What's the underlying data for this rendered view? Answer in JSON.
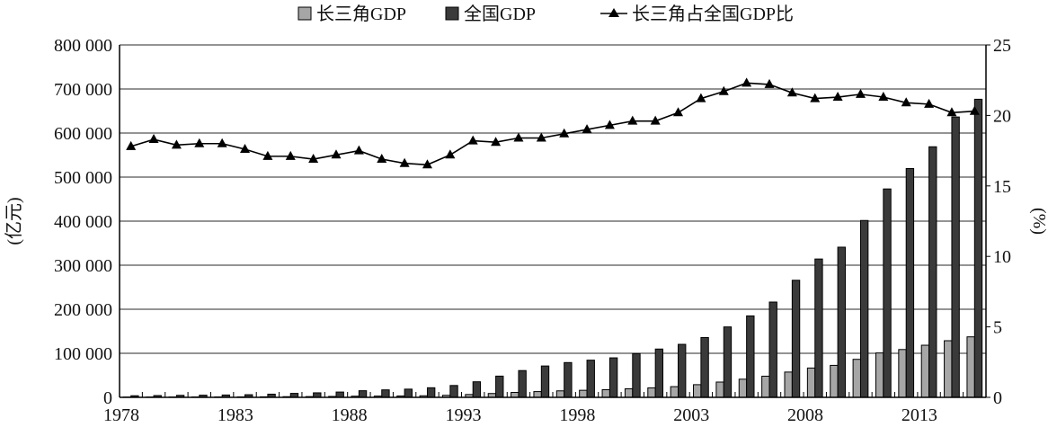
{
  "chart_data": {
    "type": "bar+line",
    "x": [
      1978,
      1979,
      1980,
      1981,
      1982,
      1983,
      1984,
      1985,
      1986,
      1987,
      1988,
      1989,
      1990,
      1991,
      1992,
      1993,
      1994,
      1995,
      1996,
      1997,
      1998,
      1999,
      2000,
      2001,
      2002,
      2003,
      2004,
      2005,
      2006,
      2007,
      2008,
      2009,
      2010,
      2011,
      2012,
      2013,
      2014,
      2015
    ],
    "xticks": [
      "1978",
      "1983",
      "1988",
      "1993",
      "1998",
      "2003",
      "2008",
      "2013"
    ],
    "yticks_left": [
      "0",
      "100 000",
      "200 000",
      "300 000",
      "400 000",
      "500 000",
      "600 000",
      "700 000",
      "800 000"
    ],
    "yticks_right": [
      "0",
      "5",
      "10",
      "15",
      "20",
      "25"
    ],
    "ylabel_left": "(亿元)",
    "ylabel_right": "(%)",
    "ylim_left": [
      0,
      800000
    ],
    "ylim_right": [
      0,
      25
    ],
    "grid": true,
    "legend_placement": "top",
    "series": [
      {
        "name": "长三角GDP",
        "type": "bar",
        "axis": "left",
        "color": "#a6a6a6",
        "values": [
          649,
          744,
          814,
          881,
          958,
          1049,
          1233,
          1542,
          1736,
          2074,
          2633,
          2872,
          3099,
          3594,
          4631,
          6431,
          8724,
          11186,
          13097,
          14768,
          16036,
          17308,
          19446,
          21492,
          24307,
          28794,
          34694,
          41241,
          48022,
          57415,
          66578,
          72612,
          86325,
          100771,
          108569,
          118320,
          128566,
          137372
        ]
      },
      {
        "name": "全国GDP",
        "type": "bar",
        "axis": "left",
        "color": "#3a3a3a",
        "values": [
          3645,
          4063,
          4546,
          4892,
          5323,
          5963,
          7208,
          9016,
          10275,
          12059,
          15043,
          16992,
          18668,
          21781,
          26923,
          35334,
          48198,
          60794,
          71177,
          78973,
          84402,
          89677,
          99215,
          109655,
          120333,
          135823,
          159878,
          184937,
          216314,
          265810,
          314045,
          340903,
          401513,
          473104,
          519470,
          568845,
          636463,
          676708
        ]
      },
      {
        "name": "长三角占全国GDP比",
        "type": "line",
        "axis": "right",
        "color": "#000000",
        "marker": "triangle",
        "values": [
          17.8,
          18.3,
          17.9,
          18.0,
          18.0,
          17.6,
          17.1,
          17.1,
          16.9,
          17.2,
          17.5,
          16.9,
          16.6,
          16.5,
          17.2,
          18.2,
          18.1,
          18.4,
          18.4,
          18.7,
          19.0,
          19.3,
          19.6,
          19.6,
          20.2,
          21.2,
          21.7,
          22.3,
          22.2,
          21.6,
          21.2,
          21.3,
          21.5,
          21.3,
          20.9,
          20.8,
          20.2,
          20.3
        ]
      }
    ]
  }
}
